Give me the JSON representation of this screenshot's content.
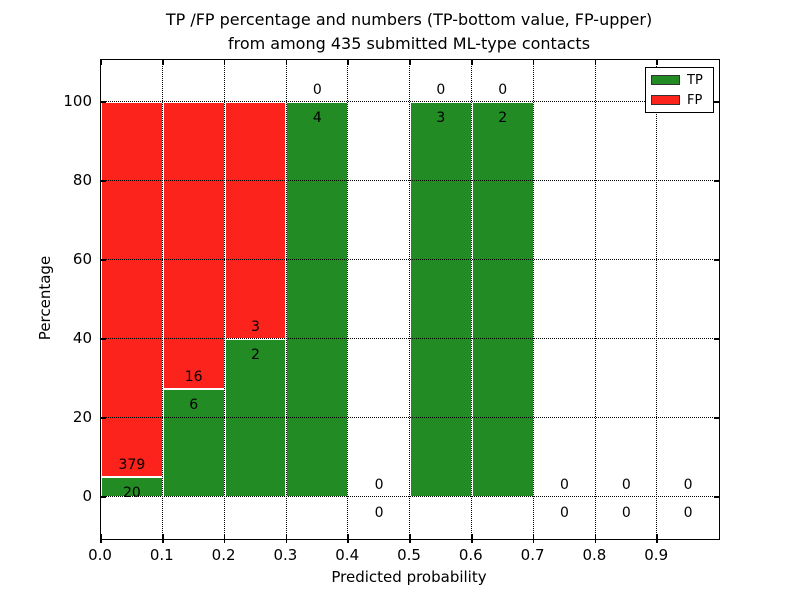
{
  "title": {
    "line1": "TP /FP percentage and numbers (TP-bottom value, FP-upper)",
    "line2": "from among 435 submitted ML-type contacts"
  },
  "chart_data": {
    "type": "bar",
    "stacked": true,
    "normalized_to_percent": true,
    "title": "TP /FP percentage and numbers (TP-bottom value, FP-upper) from among 435 submitted ML-type contacts",
    "xlabel": "Predicted probability",
    "ylabel": "Percentage",
    "total_contacts": 435,
    "categories": [
      "0.0-0.1",
      "0.1-0.2",
      "0.2-0.3",
      "0.3-0.4",
      "0.4-0.5",
      "0.5-0.6",
      "0.6-0.7",
      "0.7-0.8",
      "0.8-0.9",
      "0.9-1.0"
    ],
    "bin_starts": [
      0.0,
      0.1,
      0.2,
      0.3,
      0.4,
      0.5,
      0.6,
      0.7,
      0.8,
      0.9
    ],
    "bin_width": 0.1,
    "series": [
      {
        "name": "TP",
        "color": "#238b23",
        "counts": [
          20,
          6,
          2,
          4,
          0,
          3,
          2,
          0,
          0,
          0
        ]
      },
      {
        "name": "FP",
        "color": "#fb231b",
        "counts": [
          379,
          16,
          3,
          0,
          0,
          0,
          0,
          0,
          0,
          0
        ]
      }
    ],
    "bar_percentages_tp": [
      5.0,
      27.3,
      40.0,
      100.0,
      0.0,
      100.0,
      100.0,
      0.0,
      0.0,
      0.0
    ],
    "xlim": [
      0,
      1
    ],
    "ylim": [
      -10.6,
      110.6
    ],
    "x_ticks": [
      "0.0",
      "0.1",
      "0.2",
      "0.3",
      "0.4",
      "0.5",
      "0.6",
      "0.7",
      "0.8",
      "0.9"
    ],
    "y_ticks": [
      0,
      20,
      40,
      60,
      80,
      100
    ],
    "grid": "dotted, drawn above bars",
    "legend_position": "upper right"
  }
}
